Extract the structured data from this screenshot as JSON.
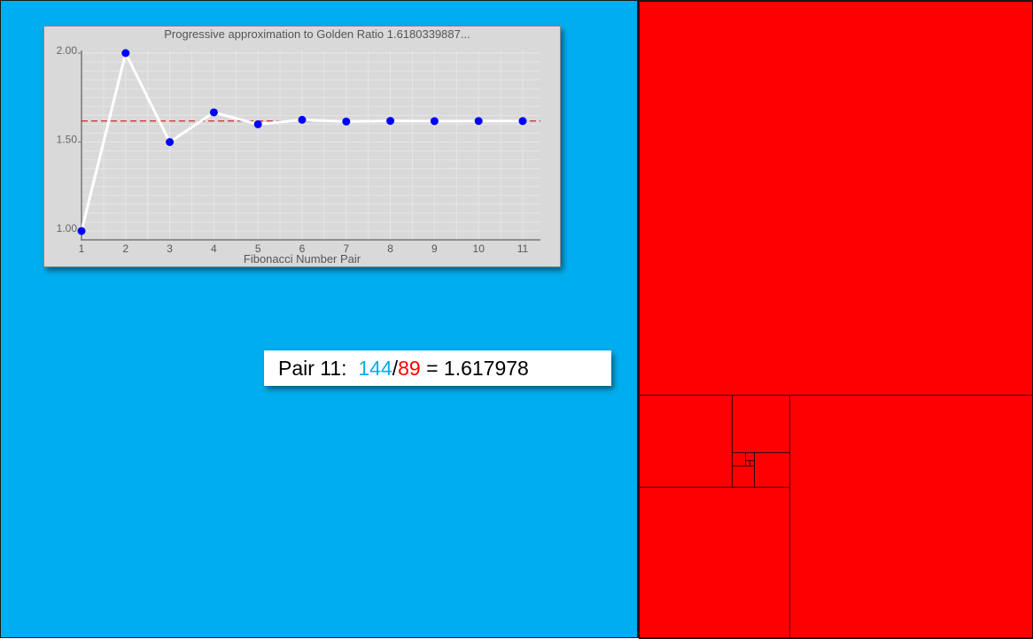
{
  "colors": {
    "blue_region": "#00aeef",
    "red_region": "#ff0000",
    "chart_line": "#ffffff",
    "chart_points": "#0000ff",
    "reference_line": "#cc0000",
    "numerator_text": "#00aeef",
    "denominator_text": "#ff0000"
  },
  "ratio_display": {
    "pair_label": "Pair 11:",
    "numerator": "144",
    "slash": "/",
    "denominator": "89",
    "equals": "=",
    "result": "1.617978"
  },
  "chart_data": {
    "type": "line",
    "title": "Progressive approximation to Golden Ratio  1.6180339887...",
    "xlabel": "Fibonacci Number Pair",
    "ylabel": "",
    "x": [
      1,
      2,
      3,
      4,
      5,
      6,
      7,
      8,
      9,
      10,
      11
    ],
    "xticks": [
      "1",
      "2",
      "3",
      "4",
      "5",
      "6",
      "7",
      "8",
      "9",
      "10",
      "11"
    ],
    "yticks": [
      "1.00",
      "1.50",
      "2.00"
    ],
    "ylim": [
      1.0,
      2.0
    ],
    "series": [
      {
        "values": [
          1.0,
          2.0,
          1.5,
          1.6667,
          1.6,
          1.625,
          1.6154,
          1.619,
          1.6176,
          1.6182,
          1.618
        ]
      }
    ],
    "reference_line": {
      "value": 1.6180339887,
      "style": "dashed"
    },
    "grid": true,
    "legend": "none"
  }
}
